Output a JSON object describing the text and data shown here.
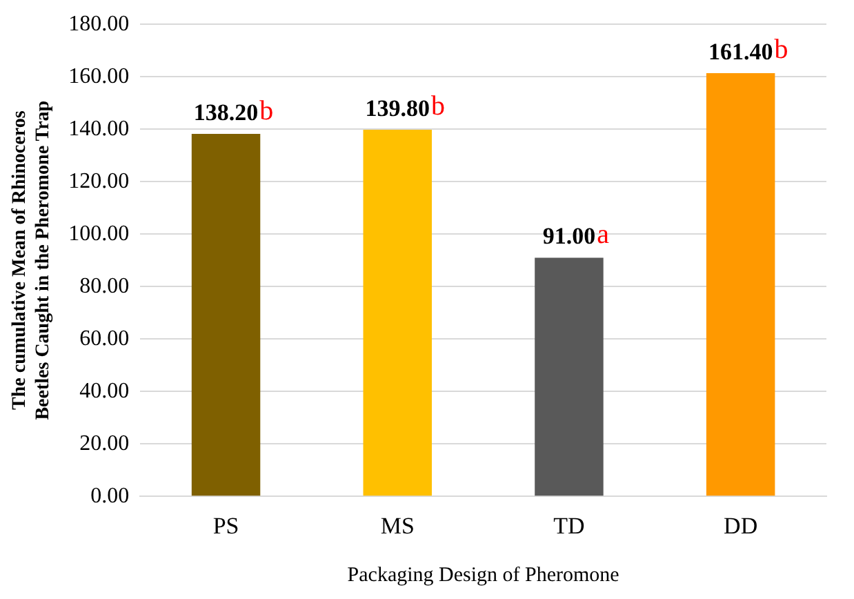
{
  "chart_data": {
    "type": "bar",
    "xlabel": "Packaging Design of Pheromone",
    "ylabel": "The cumulative Mean of Rhinoceros Beetles Caught in the Pheromone Trap",
    "categories": [
      "PS",
      "MS",
      "TD",
      "DD"
    ],
    "values": [
      138.2,
      139.8,
      91.0,
      161.4
    ],
    "colors": [
      "#7f6000",
      "#ffc000",
      "#595959",
      "#ff9900"
    ],
    "value_labels": [
      "138.20",
      "139.80",
      "91.00",
      "161.40"
    ],
    "annotations": [
      {
        "text": "b",
        "x": "PS",
        "y": 138.2
      },
      {
        "text": "b",
        "x": "MS",
        "y": 139.8
      },
      {
        "text": "a",
        "x": "TD",
        "y": 91.0
      },
      {
        "text": "b",
        "x": "DD",
        "y": 161.4
      }
    ],
    "ylim": [
      0,
      180
    ],
    "yticks": [
      {
        "value": 0,
        "label": "0.00"
      },
      {
        "value": 20,
        "label": "20.00"
      },
      {
        "value": 40,
        "label": "40.00"
      },
      {
        "value": 60,
        "label": "60.00"
      },
      {
        "value": 80,
        "label": "80.00"
      },
      {
        "value": 100,
        "label": "100.00"
      },
      {
        "value": 120,
        "label": "120.00"
      },
      {
        "value": 140,
        "label": "140.00"
      },
      {
        "value": 160,
        "label": "160.00"
      },
      {
        "value": 180,
        "label": "180.00"
      }
    ],
    "grid": "y",
    "legend": false
  }
}
